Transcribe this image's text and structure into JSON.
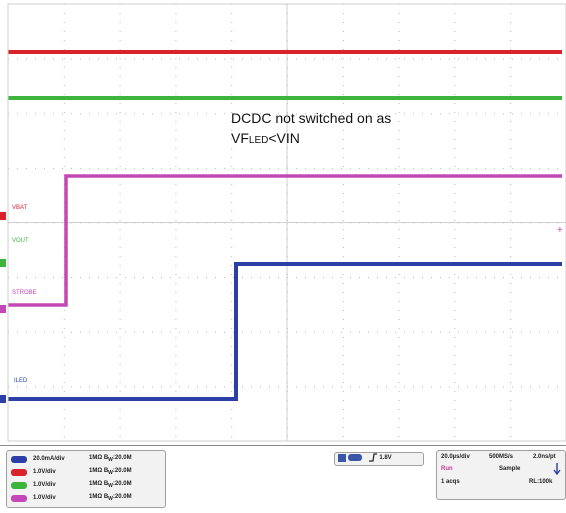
{
  "annotation": {
    "line1": "DCDC not switched on as",
    "vf_prefix": "VF",
    "vf_sub": "LED",
    "vf_suffix": "<VIN"
  },
  "traces": [
    {
      "name": "VBAT",
      "color": "#d8232a"
    },
    {
      "name": "VOUT",
      "color": "#3fb43c"
    },
    {
      "name": "STROBE",
      "color": "#c447b8"
    },
    {
      "name": "ILED",
      "color": "#2b3fa6"
    }
  ],
  "channels": [
    {
      "vdiv": "20.0mA/div",
      "impedance": "1MΩ",
      "bw": "20.0M",
      "color": "#2b3fa6"
    },
    {
      "vdiv": "1.0V/div",
      "impedance": "1MΩ",
      "bw": "20.0M",
      "color": "#d8232a"
    },
    {
      "vdiv": "1.0V/div",
      "impedance": "1MΩ",
      "bw": "20.0M",
      "color": "#3fb43c"
    },
    {
      "vdiv": "1.0V/div",
      "impedance": "1MΩ",
      "bw": "20.0M",
      "color": "#c447b8"
    }
  ],
  "bw_prefix": "B",
  "bw_sub": "W",
  "trigger": {
    "level": "1.8V",
    "slope_icon": "rising-edge-icon"
  },
  "timebase": {
    "sec_div": "20.0µs/div",
    "sample_rate": "500MS/s",
    "pt": "2.0ns/pt",
    "run_state": "Run",
    "mode": "Sample",
    "acqs": "1 acqs",
    "record_length": "RL:100k",
    "run_color": "#c83a9a"
  }
}
